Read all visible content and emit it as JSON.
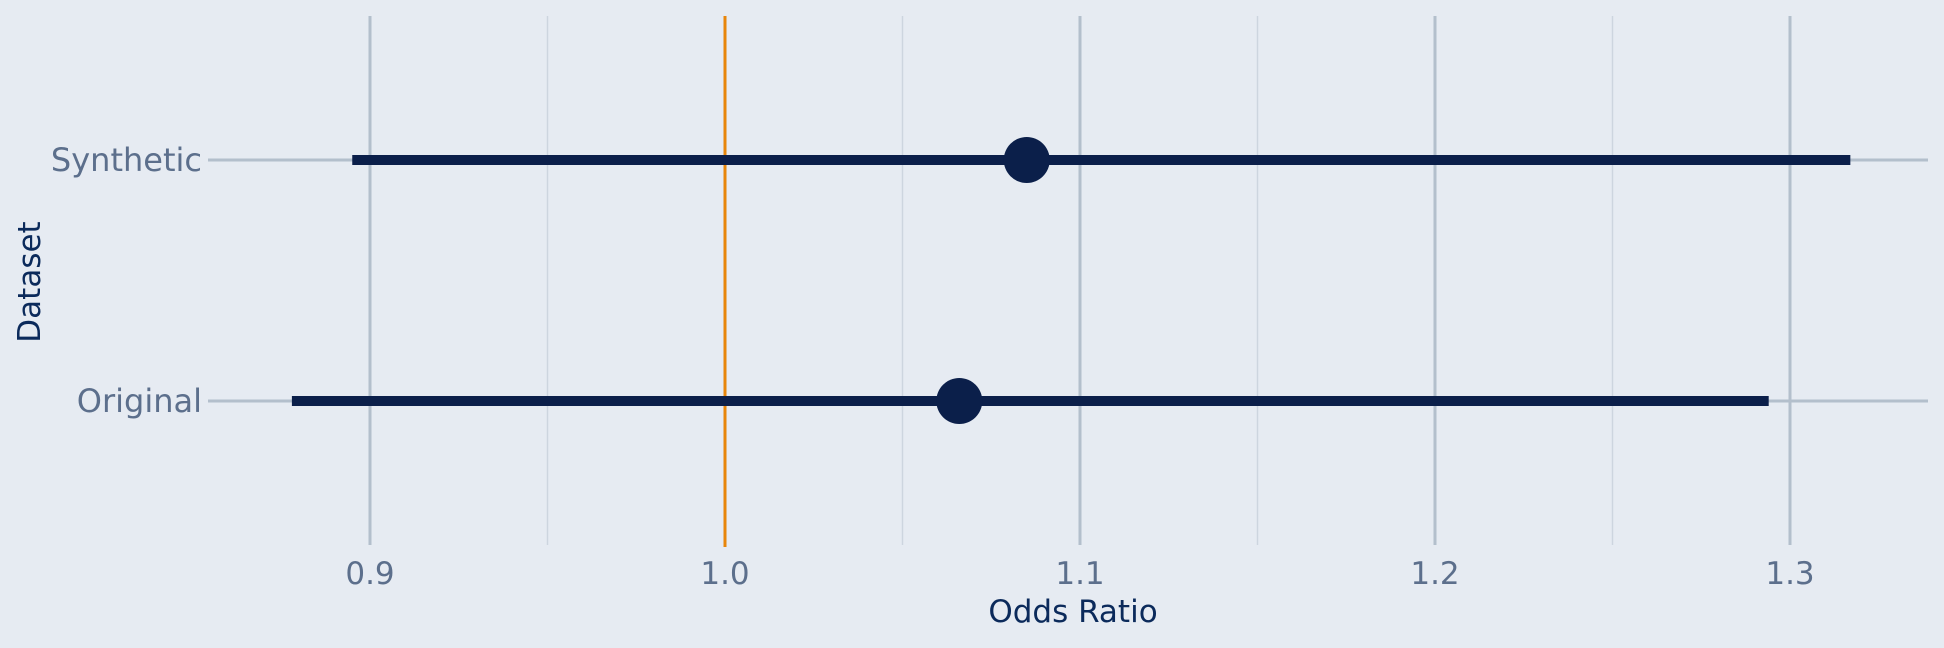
{
  "chart_data": {
    "type": "scatter",
    "subtype": "forest-plot",
    "xlabel": "Odds Ratio",
    "ylabel": "Dataset",
    "xlim": [
      0.85,
      1.34
    ],
    "x_ticks": [
      {
        "value": 0.9,
        "label": "0.9"
      },
      {
        "value": 1.0,
        "label": "1.0"
      },
      {
        "value": 1.1,
        "label": "1.1"
      },
      {
        "value": 1.2,
        "label": "1.2"
      },
      {
        "value": 1.3,
        "label": "1.3"
      }
    ],
    "x_minor_ticks": [
      0.95,
      1.05,
      1.15,
      1.25
    ],
    "reference_line": {
      "value": 1.0,
      "color": "#e8860b"
    },
    "categories": [
      "Synthetic",
      "Original"
    ],
    "estimates": [
      {
        "dataset": "Synthetic",
        "odds_ratio": 1.085,
        "ci_lower": 0.895,
        "ci_upper": 1.317
      },
      {
        "dataset": "Original",
        "odds_ratio": 1.066,
        "ci_lower": 0.878,
        "ci_upper": 1.294
      }
    ],
    "grid": true,
    "colors": {
      "background": "#e6ebf2",
      "marker": "#0b1f4a",
      "major_grid": "#b3bfcc",
      "minor_grid": "#cdd5df",
      "tick_text": "#5c6f8c",
      "axis_title": "#0b2a5b"
    }
  }
}
